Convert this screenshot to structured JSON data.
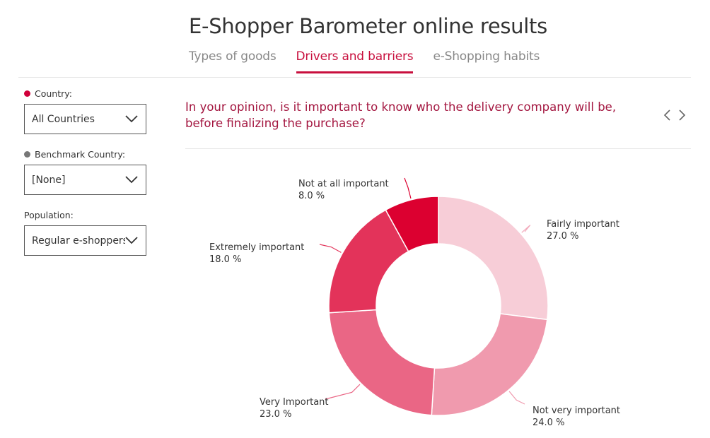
{
  "header": {
    "title": "E-Shopper Barometer online results",
    "tabs": [
      {
        "label": "Types of goods",
        "active": false
      },
      {
        "label": "Drivers and barriers",
        "active": true
      },
      {
        "label": "e-Shopping habits",
        "active": false
      }
    ]
  },
  "filters": {
    "country": {
      "label": "Country:",
      "value": "All Countries",
      "dot_color": "#d0003a"
    },
    "benchmark": {
      "label": "Benchmark Country:",
      "value": "[None]",
      "dot_color": "#777777"
    },
    "population": {
      "label": "Population:",
      "value": "Regular e-shoppers"
    }
  },
  "question": "In your opinion, is it important to know who the delivery company will be, before finalizing the purchase?",
  "icons": {
    "prev": "chevron-left-icon",
    "next": "chevron-right-icon",
    "dropdown": "chevron-down-icon"
  },
  "chart_data": {
    "type": "pie",
    "donut": true,
    "start": "top, clockwise",
    "slices": [
      {
        "label": "Fairly important",
        "value": 27.0,
        "display": "27.0 %",
        "color": "#f7cdd7"
      },
      {
        "label": "Not very important",
        "value": 24.0,
        "display": "24.0 %",
        "color": "#f09aae"
      },
      {
        "label": "Very Important",
        "value": 23.0,
        "display": "23.0 %",
        "color": "#ea6685"
      },
      {
        "label": "Extremely important",
        "value": 18.0,
        "display": "18.0 %",
        "color": "#e3335a"
      },
      {
        "label": "Not at all important",
        "value": 8.0,
        "display": "8.0 %",
        "color": "#dc0030"
      }
    ]
  }
}
